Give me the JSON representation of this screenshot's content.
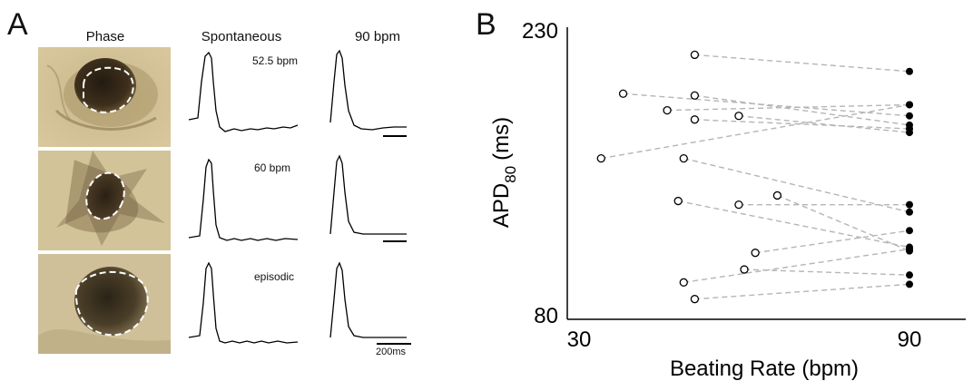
{
  "panel_a": {
    "letter": "A",
    "columns": {
      "phase": "Phase",
      "spontaneous": "Spontaneous",
      "paced": "90 bpm"
    },
    "rows": [
      {
        "rate_label": "52.5 bpm"
      },
      {
        "rate_label": "60 bpm"
      },
      {
        "rate_label": "episodic"
      }
    ],
    "time_scale_label": "200ms"
  },
  "panel_b": {
    "letter": "B"
  },
  "chart_data": {
    "type": "scatter",
    "xlabel": "Beating Rate (bpm)",
    "ylabel_main": "APD",
    "ylabel_sub": "80",
    "ylabel_unit": "(ms)",
    "xlim": [
      30,
      90
    ],
    "ylim": [
      80,
      230
    ],
    "xticks": [
      "30",
      "90"
    ],
    "yticks": [
      "80",
      "230"
    ],
    "grid": false,
    "series": [
      {
        "marker": "open circle"
      },
      {
        "marker": "filled circle"
      }
    ],
    "pairs": [
      {
        "spontaneous": [
          51,
          220
        ],
        "paced": [
          90,
          211
        ]
      },
      {
        "spontaneous": [
          38,
          199
        ],
        "paced": [
          90,
          187
        ]
      },
      {
        "spontaneous": [
          51,
          198
        ],
        "paced": [
          90,
          182
        ]
      },
      {
        "spontaneous": [
          46,
          190
        ],
        "paced": [
          90,
          193
        ]
      },
      {
        "spontaneous": [
          51,
          185
        ],
        "paced": [
          90,
          180
        ]
      },
      {
        "spontaneous": [
          59,
          187
        ],
        "paced": [
          90,
          178
        ]
      },
      {
        "spontaneous": [
          34,
          164
        ],
        "paced": [
          90,
          193
        ]
      },
      {
        "spontaneous": [
          49,
          164
        ],
        "paced": [
          90,
          135
        ]
      },
      {
        "spontaneous": [
          48,
          141
        ],
        "paced": [
          90,
          116
        ]
      },
      {
        "spontaneous": [
          59,
          139
        ],
        "paced": [
          90,
          139
        ]
      },
      {
        "spontaneous": [
          66,
          144
        ],
        "paced": [
          90,
          114
        ]
      },
      {
        "spontaneous": [
          62,
          113
        ],
        "paced": [
          90,
          125
        ]
      },
      {
        "spontaneous": [
          49,
          97
        ],
        "paced": [
          90,
          115
        ]
      },
      {
        "spontaneous": [
          51,
          88
        ],
        "paced": [
          90,
          96
        ]
      },
      {
        "spontaneous": [
          60,
          104
        ],
        "paced": [
          90,
          101
        ]
      }
    ]
  }
}
